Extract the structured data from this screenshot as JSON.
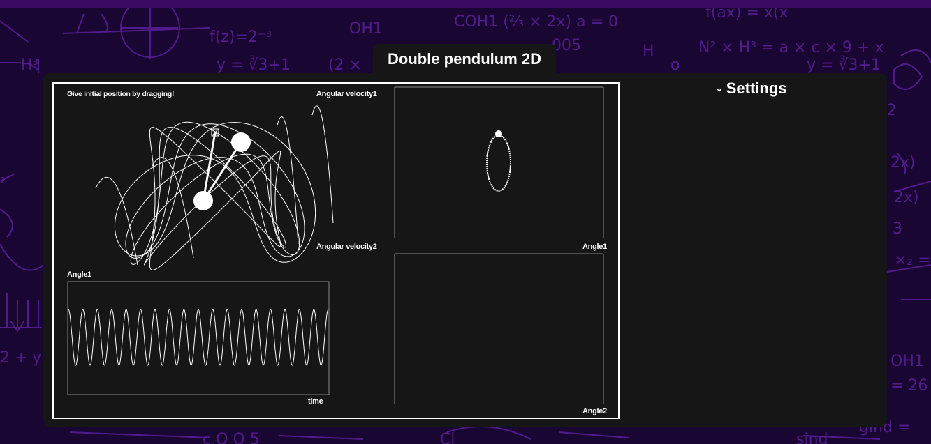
{
  "header": {
    "title": "Double pendulum 2D"
  },
  "settings": {
    "label": "Settings",
    "icon": "chevron-down-icon"
  },
  "simulation": {
    "hint": "Give initial position by dragging!",
    "plots": {
      "phase1": {
        "ylabel": "Angular velocity1",
        "xlabel": "Angle1"
      },
      "phase2": {
        "ylabel": "Angular velocity2",
        "xlabel": "Angle2"
      },
      "timeseries": {
        "ylabel": "Angle1",
        "xlabel": "time"
      }
    }
  },
  "colors": {
    "panel": "#161616",
    "accent_bg": "#1a0633",
    "chalk": "#6a2bb0",
    "line": "#ffffff"
  }
}
